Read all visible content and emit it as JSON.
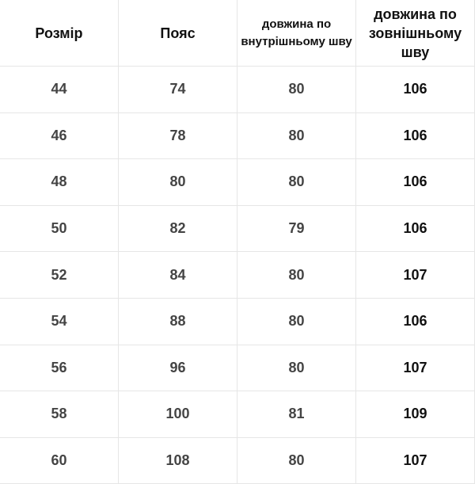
{
  "table": {
    "headers": [
      "Розмір",
      "Пояс",
      "довжина по внутрішньому шву",
      "довжина по зовнішньому шву"
    ],
    "rows": [
      [
        "44",
        "74",
        "80",
        "106"
      ],
      [
        "46",
        "78",
        "80",
        "106"
      ],
      [
        "48",
        "80",
        "80",
        "106"
      ],
      [
        "50",
        "82",
        "79",
        "106"
      ],
      [
        "52",
        "84",
        "80",
        "107"
      ],
      [
        "54",
        "88",
        "80",
        "106"
      ],
      [
        "56",
        "96",
        "80",
        "107"
      ],
      [
        "58",
        "100",
        "81",
        "109"
      ],
      [
        "60",
        "108",
        "80",
        "107"
      ]
    ]
  }
}
